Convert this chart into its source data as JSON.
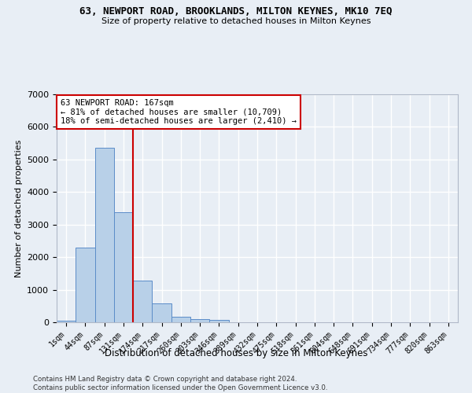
{
  "title1": "63, NEWPORT ROAD, BROOKLANDS, MILTON KEYNES, MK10 7EQ",
  "title2": "Size of property relative to detached houses in Milton Keynes",
  "xlabel": "Distribution of detached houses by size in Milton Keynes",
  "ylabel": "Number of detached properties",
  "categories": [
    "1sqm",
    "44sqm",
    "87sqm",
    "131sqm",
    "174sqm",
    "217sqm",
    "260sqm",
    "303sqm",
    "346sqm",
    "389sqm",
    "432sqm",
    "475sqm",
    "518sqm",
    "561sqm",
    "604sqm",
    "648sqm",
    "691sqm",
    "734sqm",
    "777sqm",
    "820sqm",
    "863sqm"
  ],
  "bar_values": [
    60,
    2300,
    5350,
    3380,
    1280,
    570,
    175,
    105,
    70,
    0,
    0,
    0,
    0,
    0,
    0,
    0,
    0,
    0,
    0,
    0,
    0
  ],
  "bar_color": "#b8d0e8",
  "bar_edge_color": "#5b8cc8",
  "vline_x": 3.5,
  "vline_color": "#cc0000",
  "annotation_text": "63 NEWPORT ROAD: 167sqm\n← 81% of detached houses are smaller (10,709)\n18% of semi-detached houses are larger (2,410) →",
  "annotation_box_color": "#ffffff",
  "annotation_box_edge": "#cc0000",
  "ylim": [
    0,
    7000
  ],
  "yticks": [
    0,
    1000,
    2000,
    3000,
    4000,
    5000,
    6000,
    7000
  ],
  "background_color": "#e8eef5",
  "grid_color": "#ffffff",
  "footnote": "Contains HM Land Registry data © Crown copyright and database right 2024.\nContains public sector information licensed under the Open Government Licence v3.0."
}
